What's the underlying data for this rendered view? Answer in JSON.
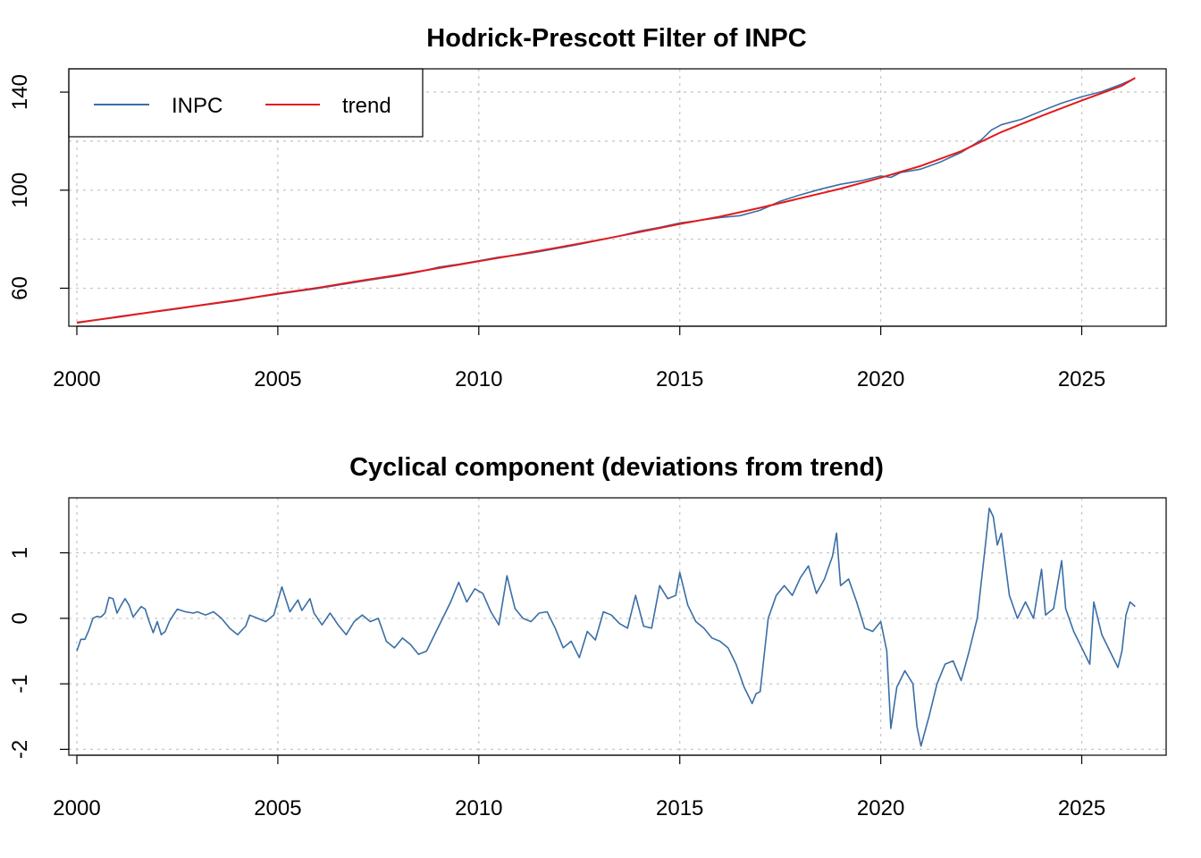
{
  "chart_data": [
    {
      "type": "line",
      "title": "Hodrick-Prescott Filter of INPC",
      "xlabel": "",
      "ylabel": "",
      "xlim": [
        1999.8,
        2027.1
      ],
      "ylim": [
        44.5,
        149.5
      ],
      "x_ticks": [
        2000,
        2005,
        2010,
        2015,
        2020,
        2025
      ],
      "x_tick_labels": [
        "2000",
        "2005",
        "2010",
        "2015",
        "2020",
        "2025"
      ],
      "y_ticks": [
        60,
        100,
        140
      ],
      "y_tick_labels": [
        "60",
        "100",
        "140"
      ],
      "y_grid_lines": [
        60,
        80,
        100,
        120,
        140
      ],
      "grid": true,
      "legend": {
        "position": "top-left",
        "entries": [
          "INPC",
          "trend"
        ]
      },
      "colors": {
        "INPC": "#3a6ea5",
        "trend": "#e41a1c"
      },
      "series": [
        {
          "name": "INPC",
          "x": [
            2000.0,
            2000.5,
            2001.0,
            2001.5,
            2002.0,
            2002.5,
            2003.0,
            2003.5,
            2004.0,
            2004.5,
            2005.0,
            2005.5,
            2006.0,
            2006.5,
            2007.0,
            2007.5,
            2008.0,
            2008.5,
            2009.0,
            2009.5,
            2010.0,
            2010.5,
            2011.0,
            2011.5,
            2012.0,
            2012.5,
            2013.0,
            2013.5,
            2014.0,
            2014.5,
            2015.0,
            2015.5,
            2016.0,
            2016.5,
            2017.0,
            2017.5,
            2018.0,
            2018.5,
            2019.0,
            2019.5,
            2020.0,
            2020.25,
            2020.5,
            2021.0,
            2021.5,
            2022.0,
            2022.5,
            2022.75,
            2023.0,
            2023.5,
            2024.0,
            2024.5,
            2025.0,
            2025.5,
            2026.0,
            2026.33
          ],
          "values": [
            45.8,
            47.1,
            48.4,
            49.5,
            50.5,
            51.6,
            52.8,
            53.9,
            55.0,
            56.4,
            57.6,
            58.8,
            59.9,
            61.3,
            62.6,
            63.9,
            65.1,
            66.6,
            68.6,
            69.8,
            71.2,
            72.7,
            73.6,
            74.9,
            76.4,
            77.9,
            79.6,
            81.3,
            83.3,
            84.8,
            86.6,
            87.7,
            88.8,
            89.6,
            91.8,
            95.5,
            98.1,
            100.4,
            102.4,
            103.8,
            105.8,
            105.2,
            107.2,
            108.6,
            111.6,
            115.4,
            120.5,
            124.5,
            126.7,
            128.9,
            132.3,
            135.5,
            138.1,
            140.2,
            143.3,
            145.7
          ]
        },
        {
          "name": "trend",
          "x": [
            2000.0,
            2001.0,
            2002.0,
            2003.0,
            2004.0,
            2005.0,
            2006.0,
            2007.0,
            2008.0,
            2009.0,
            2010.0,
            2011.0,
            2012.0,
            2013.0,
            2014.0,
            2015.0,
            2016.0,
            2017.0,
            2018.0,
            2019.0,
            2020.0,
            2021.0,
            2022.0,
            2023.0,
            2024.0,
            2025.0,
            2026.0,
            2026.33
          ],
          "values": [
            46.0,
            48.2,
            50.6,
            52.9,
            55.2,
            57.8,
            60.2,
            62.9,
            65.4,
            68.2,
            71.0,
            73.8,
            76.7,
            79.7,
            82.9,
            86.2,
            89.2,
            92.8,
            96.7,
            100.6,
            105.1,
            109.9,
            115.9,
            123.7,
            130.3,
            136.6,
            142.6,
            145.8
          ]
        }
      ]
    },
    {
      "type": "line",
      "title": "Cyclical component (deviations from trend)",
      "xlabel": "",
      "ylabel": "",
      "xlim": [
        1999.8,
        2027.1
      ],
      "ylim": [
        -2.09,
        1.84
      ],
      "x_ticks": [
        2000,
        2005,
        2010,
        2015,
        2020,
        2025
      ],
      "x_tick_labels": [
        "2000",
        "2005",
        "2010",
        "2015",
        "2020",
        "2025"
      ],
      "y_ticks": [
        -2,
        -1,
        0,
        1
      ],
      "y_tick_labels": [
        "-2",
        "-1",
        "0",
        "1"
      ],
      "grid": true,
      "colors": {
        "cycle": "#3a6ea5"
      },
      "series": [
        {
          "name": "",
          "x": [
            2000.0,
            2000.1,
            2000.2,
            2000.3,
            2000.4,
            2000.5,
            2000.6,
            2000.7,
            2000.8,
            2000.9,
            2001.0,
            2001.1,
            2001.2,
            2001.3,
            2001.4,
            2001.5,
            2001.6,
            2001.7,
            2001.8,
            2001.9,
            2002.0,
            2002.1,
            2002.2,
            2002.3,
            2002.4,
            2002.5,
            2002.7,
            2002.9,
            2003.0,
            2003.2,
            2003.4,
            2003.6,
            2003.8,
            2004.0,
            2004.2,
            2004.3,
            2004.5,
            2004.7,
            2004.9,
            2005.1,
            2005.3,
            2005.5,
            2005.6,
            2005.8,
            2005.9,
            2006.1,
            2006.3,
            2006.5,
            2006.7,
            2006.9,
            2007.1,
            2007.3,
            2007.5,
            2007.7,
            2007.9,
            2008.1,
            2008.3,
            2008.5,
            2008.7,
            2008.9,
            2009.1,
            2009.3,
            2009.5,
            2009.7,
            2009.9,
            2010.1,
            2010.3,
            2010.5,
            2010.7,
            2010.9,
            2011.1,
            2011.3,
            2011.5,
            2011.7,
            2011.9,
            2012.1,
            2012.3,
            2012.5,
            2012.7,
            2012.9,
            2013.1,
            2013.3,
            2013.5,
            2013.7,
            2013.9,
            2014.1,
            2014.3,
            2014.5,
            2014.7,
            2014.9,
            2015.0,
            2015.2,
            2015.4,
            2015.6,
            2015.8,
            2016.0,
            2016.2,
            2016.4,
            2016.6,
            2016.8,
            2016.9,
            2017.0,
            2017.2,
            2017.4,
            2017.6,
            2017.8,
            2018.0,
            2018.2,
            2018.4,
            2018.6,
            2018.8,
            2018.9,
            2019.0,
            2019.2,
            2019.4,
            2019.6,
            2019.8,
            2020.0,
            2020.15,
            2020.25,
            2020.4,
            2020.6,
            2020.8,
            2020.9,
            2021.0,
            2021.2,
            2021.4,
            2021.6,
            2021.8,
            2022.0,
            2022.2,
            2022.4,
            2022.6,
            2022.7,
            2022.8,
            2022.9,
            2023.0,
            2023.2,
            2023.4,
            2023.6,
            2023.8,
            2024.0,
            2024.1,
            2024.3,
            2024.5,
            2024.6,
            2024.8,
            2025.0,
            2025.2,
            2025.3,
            2025.5,
            2025.7,
            2025.9,
            2026.0,
            2026.1,
            2026.2,
            2026.33
          ],
          "values": [
            -0.5,
            -0.32,
            -0.32,
            -0.18,
            0.0,
            0.03,
            0.02,
            0.08,
            0.32,
            0.3,
            0.08,
            0.2,
            0.3,
            0.2,
            0.02,
            0.1,
            0.18,
            0.14,
            -0.05,
            -0.22,
            -0.05,
            -0.25,
            -0.2,
            -0.05,
            0.05,
            0.14,
            0.1,
            0.08,
            0.1,
            0.05,
            0.1,
            0.0,
            -0.15,
            -0.25,
            -0.12,
            0.05,
            0.0,
            -0.05,
            0.05,
            0.48,
            0.1,
            0.28,
            0.12,
            0.3,
            0.08,
            -0.1,
            0.08,
            -0.1,
            -0.25,
            -0.05,
            0.05,
            -0.05,
            0.0,
            -0.35,
            -0.45,
            -0.3,
            -0.4,
            -0.55,
            -0.5,
            -0.25,
            0.0,
            0.25,
            0.55,
            0.25,
            0.45,
            0.38,
            0.1,
            -0.1,
            0.65,
            0.15,
            0.0,
            -0.05,
            0.08,
            0.1,
            -0.15,
            -0.45,
            -0.35,
            -0.6,
            -0.2,
            -0.33,
            0.1,
            0.05,
            -0.08,
            -0.15,
            0.35,
            -0.12,
            -0.15,
            0.5,
            0.3,
            0.35,
            0.7,
            0.2,
            -0.05,
            -0.15,
            -0.3,
            -0.35,
            -0.45,
            -0.7,
            -1.05,
            -1.3,
            -1.15,
            -1.12,
            0.0,
            0.35,
            0.5,
            0.35,
            0.62,
            0.8,
            0.38,
            0.6,
            0.95,
            1.3,
            0.5,
            0.6,
            0.25,
            -0.15,
            -0.2,
            -0.05,
            -0.5,
            -1.68,
            -1.05,
            -0.8,
            -1.0,
            -1.65,
            -1.95,
            -1.5,
            -1.0,
            -0.7,
            -0.65,
            -0.95,
            -0.5,
            0.0,
            1.1,
            1.68,
            1.55,
            1.12,
            1.3,
            0.35,
            0.0,
            0.25,
            0.0,
            0.75,
            0.05,
            0.15,
            0.88,
            0.15,
            -0.2,
            -0.45,
            -0.7,
            0.25,
            -0.25,
            -0.5,
            -0.75,
            -0.5,
            0.05,
            0.25,
            0.18
          ]
        }
      ]
    }
  ]
}
